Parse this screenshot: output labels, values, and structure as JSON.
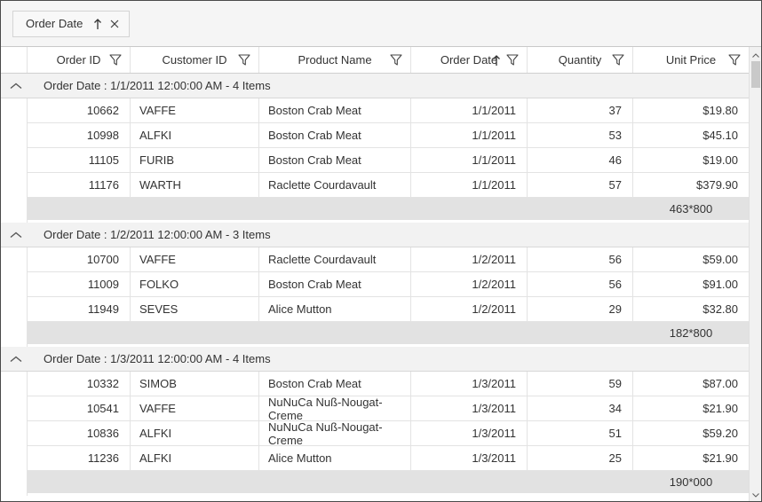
{
  "group_drop_area": {
    "chip": {
      "label": "Order Date",
      "sort_icon": "arrow-up-icon",
      "remove_icon": "close-icon",
      "sort_direction": "ascending"
    }
  },
  "columns": [
    {
      "key": "order_id",
      "label": "Order ID",
      "filter_icon": "filter-funnel-icon"
    },
    {
      "key": "customer_id",
      "label": "Customer ID",
      "filter_icon": "filter-funnel-icon"
    },
    {
      "key": "product_name",
      "label": "Product Name",
      "filter_icon": "filter-funnel-icon"
    },
    {
      "key": "order_date",
      "label": "Order Date",
      "filter_icon": "filter-funnel-icon",
      "sort_icon": "arrow-up-icon",
      "sort_direction": "ascending"
    },
    {
      "key": "quantity",
      "label": "Quantity",
      "filter_icon": "filter-funnel-icon"
    },
    {
      "key": "unit_price",
      "label": "Unit Price",
      "filter_icon": "filter-funnel-icon"
    }
  ],
  "groups": [
    {
      "caption": "Order Date : 1/1/2011 12:00:00 AM - 4 Items",
      "collapse_icon": "chevron-up-icon",
      "rows": [
        {
          "order_id": "10662",
          "customer_id": "VAFFE",
          "product_name": "Boston Crab Meat",
          "order_date": "1/1/2011",
          "quantity": "37",
          "unit_price": "$19.80"
        },
        {
          "order_id": "10998",
          "customer_id": "ALFKI",
          "product_name": "Boston Crab Meat",
          "order_date": "1/1/2011",
          "quantity": "53",
          "unit_price": "$45.10"
        },
        {
          "order_id": "11105",
          "customer_id": "FURIB",
          "product_name": "Boston Crab Meat",
          "order_date": "1/1/2011",
          "quantity": "46",
          "unit_price": "$19.00"
        },
        {
          "order_id": "11176",
          "customer_id": "WARTH",
          "product_name": "Raclette Courdavault",
          "order_date": "1/1/2011",
          "quantity": "57",
          "unit_price": "$379.90"
        }
      ],
      "summary": {
        "unit_price": "463*800"
      }
    },
    {
      "caption": "Order Date : 1/2/2011 12:00:00 AM - 3 Items",
      "collapse_icon": "chevron-up-icon",
      "rows": [
        {
          "order_id": "10700",
          "customer_id": "VAFFE",
          "product_name": "Raclette Courdavault",
          "order_date": "1/2/2011",
          "quantity": "56",
          "unit_price": "$59.00"
        },
        {
          "order_id": "11009",
          "customer_id": "FOLKO",
          "product_name": "Boston Crab Meat",
          "order_date": "1/2/2011",
          "quantity": "56",
          "unit_price": "$91.00"
        },
        {
          "order_id": "11949",
          "customer_id": "SEVES",
          "product_name": "Alice Mutton",
          "order_date": "1/2/2011",
          "quantity": "29",
          "unit_price": "$32.80"
        }
      ],
      "summary": {
        "unit_price": "182*800"
      }
    },
    {
      "caption": "Order Date : 1/3/2011 12:00:00 AM - 4 Items",
      "collapse_icon": "chevron-up-icon",
      "rows": [
        {
          "order_id": "10332",
          "customer_id": "SIMOB",
          "product_name": "Boston Crab Meat",
          "order_date": "1/3/2011",
          "quantity": "59",
          "unit_price": "$87.00"
        },
        {
          "order_id": "10541",
          "customer_id": "VAFFE",
          "product_name": "NuNuCa Nuß-Nougat-Creme",
          "order_date": "1/3/2011",
          "quantity": "34",
          "unit_price": "$21.90"
        },
        {
          "order_id": "10836",
          "customer_id": "ALFKI",
          "product_name": "NuNuCa Nuß-Nougat-Creme",
          "order_date": "1/3/2011",
          "quantity": "51",
          "unit_price": "$59.20"
        },
        {
          "order_id": "11236",
          "customer_id": "ALFKI",
          "product_name": "Alice Mutton",
          "order_date": "1/3/2011",
          "quantity": "25",
          "unit_price": "$21.90"
        }
      ],
      "summary": {
        "unit_price": "190*000"
      }
    }
  ],
  "scrollbar": {
    "up_icon": "chevron-up-icon",
    "down_icon": "chevron-down-icon"
  },
  "colors": {
    "caption_bg": "#f2f2f2",
    "summary_bg": "#e2e2e2",
    "grid_border": "#e3e3e3",
    "group_area_bg": "#f5f5f5",
    "text": "#333333"
  }
}
